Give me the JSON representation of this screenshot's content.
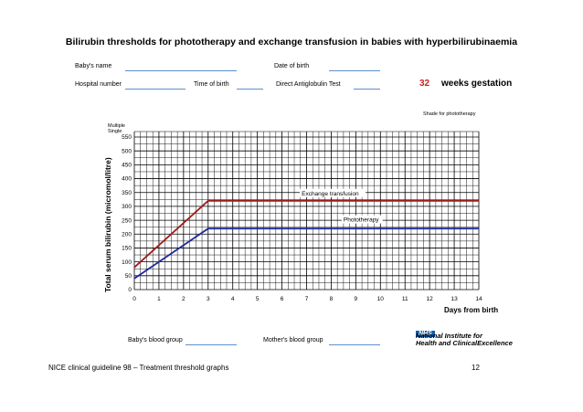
{
  "header": {
    "title": "Bilirubin thresholds for phototherapy and exchange transfusion in babies with hyperbilirubinaemia"
  },
  "form": {
    "babys_name": "Baby's name",
    "date_of_birth": "Date of birth",
    "hospital_number": "Hospital number",
    "time_of_birth": "Time of birth",
    "direct_antiglobulin": "Direct Antiglobulin Test",
    "gestation_value": "32",
    "gestation_label": "weeks gestation",
    "shade_note": "Shade for phototherapy",
    "multiple": "Multiple",
    "single": "Single",
    "babys_blood_group": "Baby's blood group",
    "mothers_blood_group": "Mother's blood group"
  },
  "logo": {
    "nhs": "NHS",
    "line1": "National Institute for",
    "line2": "Health and ClinicalExcellence"
  },
  "footer": {
    "left": "NICE clinical guideline 98 – Treatment threshold graphs",
    "page": "12"
  },
  "colors": {
    "exchange": "#9b1c1c",
    "phototherapy": "#1c2a9b",
    "grid": "#000000",
    "accent_red": "#cc1f1f",
    "underline": "#5b8fd0"
  },
  "chart_data": {
    "type": "line",
    "xlabel": "Days from birth",
    "ylabel": "Total serum bilirubin  (micromol/litre)",
    "xlim": [
      0,
      14
    ],
    "ylim": [
      0,
      550
    ],
    "xticks": [
      0,
      1,
      2,
      3,
      4,
      5,
      6,
      7,
      8,
      9,
      10,
      11,
      12,
      13,
      14
    ],
    "yticks": [
      0,
      50,
      100,
      150,
      200,
      250,
      300,
      350,
      400,
      450,
      500,
      550
    ],
    "series": [
      {
        "name": "Exchange transfusion",
        "x": [
          0,
          3,
          14
        ],
        "y": [
          80,
          320,
          320
        ]
      },
      {
        "name": "Phototherapy",
        "x": [
          0,
          3,
          14
        ],
        "y": [
          40,
          220,
          220
        ]
      }
    ]
  }
}
